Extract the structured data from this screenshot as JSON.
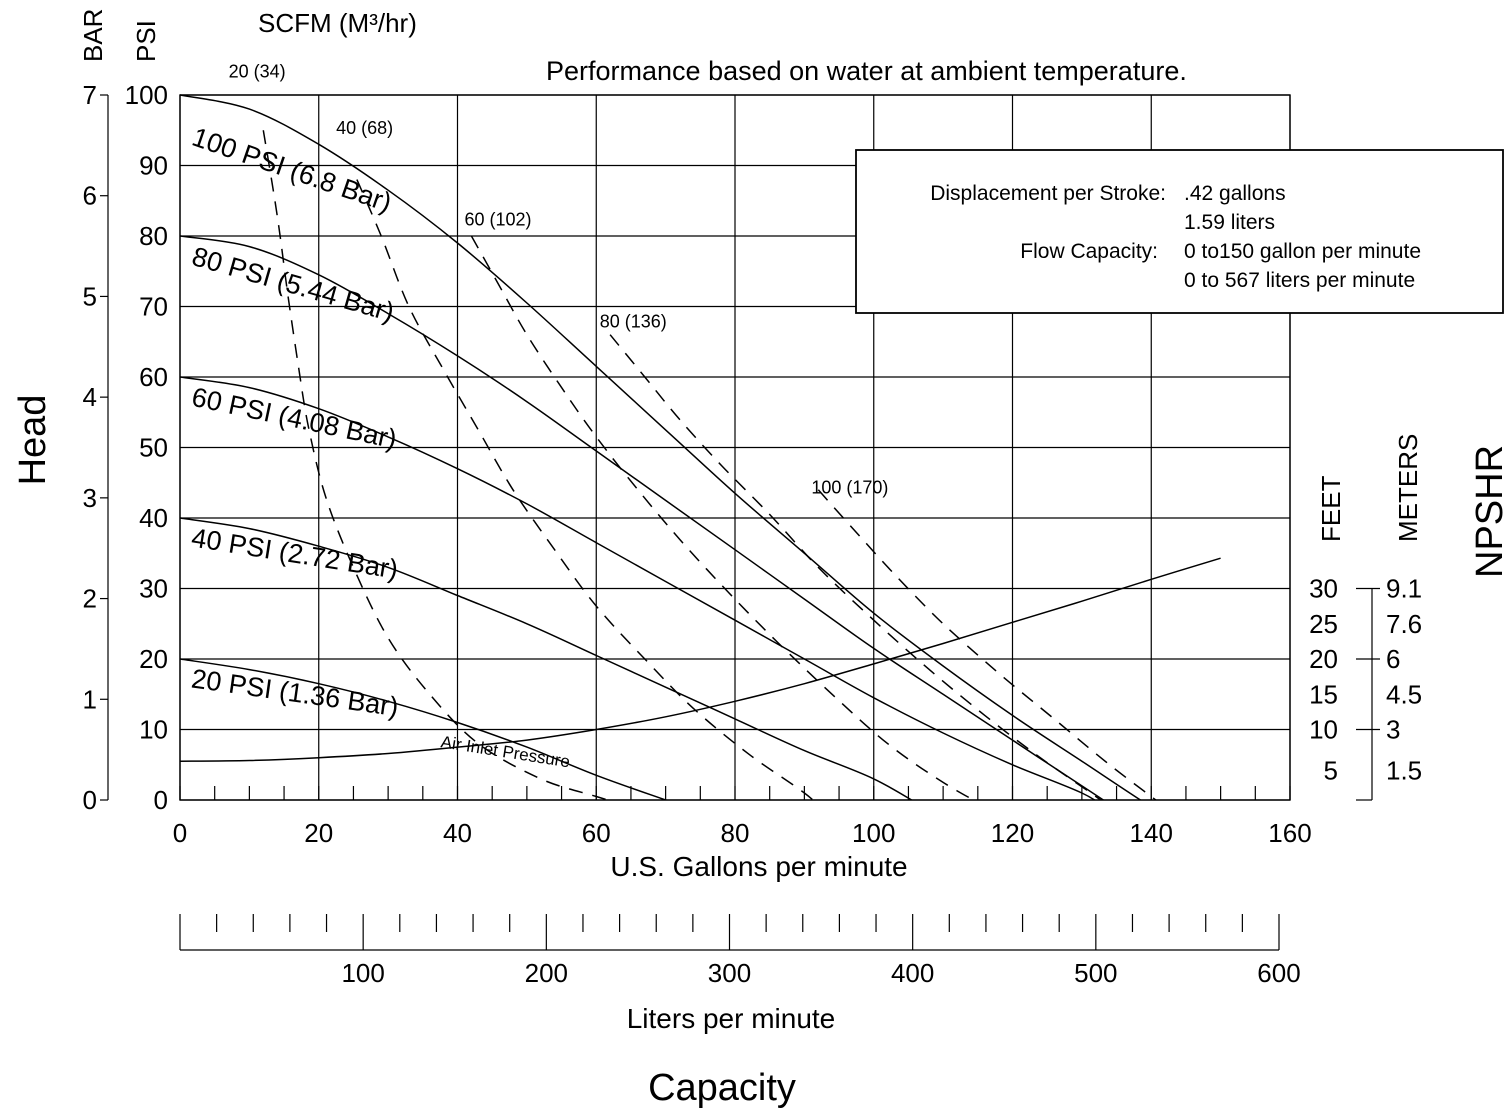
{
  "chart_data": {
    "type": "line",
    "note": "Performance based on water at ambient temperature.",
    "x_axis": {
      "label": "U.S. Gallons per minute",
      "range": [
        0,
        160
      ],
      "ticks": [
        0,
        20,
        40,
        60,
        80,
        100,
        120,
        140,
        160
      ]
    },
    "liters_axis": {
      "label": "Liters per minute",
      "ticks": [
        100,
        200,
        300,
        400,
        500,
        600
      ]
    },
    "capacity_label": "Capacity",
    "y_axis": {
      "title": "Head",
      "psi_label": "PSI",
      "bar_label": "BAR",
      "range": [
        0,
        100
      ],
      "psi_ticks": [
        0,
        10,
        20,
        30,
        40,
        50,
        60,
        70,
        80,
        90,
        100
      ],
      "bar_ticks": [
        0,
        1,
        2,
        3,
        4,
        5,
        6,
        7
      ]
    },
    "npshr_axis": {
      "title": "NPSHR",
      "feet_label": "FEET",
      "meters_label": "METERS",
      "feet_ticks": [
        {
          "label": "30",
          "psi": 30
        },
        {
          "label": "25",
          "psi": 25
        },
        {
          "label": "20",
          "psi": 20
        },
        {
          "label": "15",
          "psi": 15
        },
        {
          "label": "10",
          "psi": 10
        },
        {
          "label": "5",
          "psi": 4.2
        }
      ],
      "meter_ticks": [
        "9.1",
        "7.6",
        "6",
        "4.5",
        "3",
        "1.5"
      ]
    },
    "scfm_label": "SCFM (M³/hr)",
    "air_inlet_label": "Air Inlet Pressure",
    "pressure_curves": [
      {
        "name": "100 PSI (6.8 Bar)",
        "points": [
          [
            0,
            100
          ],
          [
            10,
            98
          ],
          [
            20,
            93
          ],
          [
            30,
            86.5
          ],
          [
            40,
            79
          ],
          [
            50,
            70.5
          ],
          [
            60,
            61.5
          ],
          [
            70,
            52.5
          ],
          [
            80,
            43.5
          ],
          [
            90,
            35
          ],
          [
            100,
            26.5
          ],
          [
            110,
            19
          ],
          [
            120,
            12
          ],
          [
            130,
            5.5
          ],
          [
            140,
            -1
          ],
          [
            146,
            -4.5
          ],
          [
            151,
            -7.5
          ]
        ]
      },
      {
        "name": "80 PSI (5.44 Bar)",
        "points": [
          [
            0,
            80
          ],
          [
            10,
            78.5
          ],
          [
            20,
            74.5
          ],
          [
            30,
            69
          ],
          [
            40,
            63
          ],
          [
            50,
            56.5
          ],
          [
            60,
            49.5
          ],
          [
            70,
            42.5
          ],
          [
            80,
            35.5
          ],
          [
            90,
            28.5
          ],
          [
            100,
            21.5
          ],
          [
            110,
            15
          ],
          [
            120,
            8.5
          ],
          [
            130,
            2
          ],
          [
            137,
            -2.5
          ],
          [
            142,
            -5.5
          ]
        ]
      },
      {
        "name": "60 PSI (4.08 Bar)",
        "points": [
          [
            0,
            60
          ],
          [
            10,
            58.5
          ],
          [
            20,
            55.5
          ],
          [
            30,
            51.5
          ],
          [
            40,
            47
          ],
          [
            50,
            42
          ],
          [
            60,
            36.5
          ],
          [
            70,
            31
          ],
          [
            80,
            25.5
          ],
          [
            90,
            20
          ],
          [
            100,
            14.5
          ],
          [
            110,
            9.5
          ],
          [
            120,
            5
          ],
          [
            130,
            1
          ],
          [
            134,
            -1.5
          ]
        ]
      },
      {
        "name": "40 PSI (2.72 Bar)",
        "points": [
          [
            0,
            40
          ],
          [
            10,
            38.5
          ],
          [
            20,
            36
          ],
          [
            30,
            33
          ],
          [
            40,
            29
          ],
          [
            50,
            25
          ],
          [
            60,
            20.5
          ],
          [
            70,
            16
          ],
          [
            80,
            11.5
          ],
          [
            90,
            7
          ],
          [
            100,
            3
          ],
          [
            108,
            -1.5
          ],
          [
            110,
            -2.5
          ]
        ]
      },
      {
        "name": "20 PSI (1.36 Bar)",
        "points": [
          [
            0,
            20
          ],
          [
            10,
            18.5
          ],
          [
            20,
            16.5
          ],
          [
            30,
            14
          ],
          [
            40,
            11
          ],
          [
            50,
            7.5
          ],
          [
            60,
            3.5
          ],
          [
            70,
            0
          ],
          [
            76,
            -2
          ]
        ]
      }
    ],
    "air_consumption_curves": [
      {
        "name": "20 (34)",
        "points": [
          [
            12,
            95
          ],
          [
            14,
            83
          ],
          [
            15.5,
            72
          ],
          [
            17,
            62
          ],
          [
            18.5,
            53
          ],
          [
            21,
            43
          ],
          [
            25,
            33
          ],
          [
            30,
            23
          ],
          [
            36,
            15
          ],
          [
            43,
            8
          ],
          [
            52,
            3
          ],
          [
            60,
            0.5
          ],
          [
            65,
            -1
          ],
          [
            70,
            -2.5
          ],
          [
            75,
            -3.5
          ]
        ]
      },
      {
        "name": "40 (68)",
        "points": [
          [
            25.5,
            88
          ],
          [
            29,
            80
          ],
          [
            33,
            70
          ],
          [
            38,
            61
          ],
          [
            43,
            52.5
          ],
          [
            48,
            44
          ],
          [
            54,
            35.5
          ],
          [
            60,
            27.5
          ],
          [
            67,
            20
          ],
          [
            74,
            13
          ],
          [
            82,
            6.5
          ],
          [
            90,
            1
          ],
          [
            94,
            -2.5
          ],
          [
            98,
            -5
          ]
        ]
      },
      {
        "name": "60 (102)",
        "points": [
          [
            42,
            80
          ],
          [
            46,
            73
          ],
          [
            50,
            66
          ],
          [
            55,
            58.5
          ],
          [
            60,
            51.5
          ],
          [
            66,
            44
          ],
          [
            72,
            37
          ],
          [
            79,
            29.5
          ],
          [
            86,
            22.5
          ],
          [
            94,
            15
          ],
          [
            102,
            8
          ],
          [
            110,
            2.5
          ],
          [
            118,
            -2
          ],
          [
            122,
            -4.5
          ]
        ]
      },
      {
        "name": "80 (136)",
        "points": [
          [
            62,
            66
          ],
          [
            67,
            60
          ],
          [
            72,
            54
          ],
          [
            78,
            47.5
          ],
          [
            85,
            40.5
          ],
          [
            92,
            33
          ],
          [
            100,
            25.5
          ],
          [
            108,
            18.5
          ],
          [
            116,
            12
          ],
          [
            124,
            6
          ],
          [
            132,
            0.5
          ],
          [
            136,
            -2.5
          ]
        ]
      },
      {
        "name": "100 (170)",
        "points": [
          [
            92,
            44
          ],
          [
            97,
            38.5
          ],
          [
            103,
            32
          ],
          [
            110,
            25
          ],
          [
            118,
            18
          ],
          [
            126,
            11.5
          ],
          [
            134,
            5
          ],
          [
            142,
            -1
          ],
          [
            148,
            -5.5
          ]
        ]
      }
    ],
    "npshr_curve": {
      "points": [
        [
          0,
          5.5
        ],
        [
          10,
          5.6
        ],
        [
          20,
          6
        ],
        [
          30,
          6.6
        ],
        [
          40,
          7.5
        ],
        [
          50,
          8.5
        ],
        [
          60,
          10
        ],
        [
          70,
          11.8
        ],
        [
          80,
          14
        ],
        [
          90,
          16.5
        ],
        [
          100,
          19.3
        ],
        [
          110,
          22.2
        ],
        [
          120,
          25.2
        ],
        [
          130,
          28.2
        ],
        [
          140,
          31.3
        ],
        [
          150,
          34.3
        ]
      ]
    },
    "info_box": {
      "rows": [
        {
          "label": "Displacement per Stroke:",
          "value": ".42 gallons"
        },
        {
          "label": "",
          "value": "1.59 liters"
        },
        {
          "label": "Flow Capacity:",
          "value": "0 to150 gallon per minute"
        },
        {
          "label": "",
          "value": "0 to 567 liters per minute"
        }
      ]
    }
  }
}
